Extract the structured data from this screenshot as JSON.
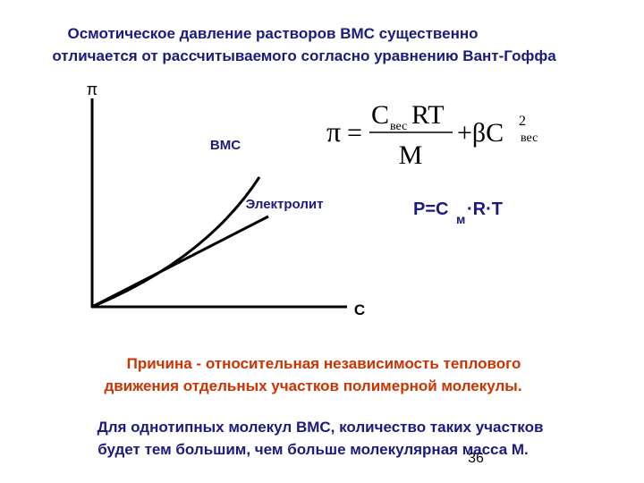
{
  "title": {
    "lines": [
      "Осмотическое давление растворов ВМС существенно",
      "отличается от рассчитываемого согласно уравнению Вант-Гоффа"
    ]
  },
  "graph": {
    "y_axis_label": "π",
    "x_axis_label": "C",
    "curves": [
      "ВМС",
      "Электролит"
    ]
  },
  "formula_1": {
    "lhs": "π",
    "eq": "=",
    "num_c": "C",
    "num_sub": "вес",
    "num_rest": "RT",
    "den": "M",
    "plus": "+βC",
    "sup": "2",
    "sub": "вес"
  },
  "formula_2": {
    "main": "P=C",
    "sub": "м",
    "rest": "·R·T"
  },
  "reason": {
    "lines": [
      "Причина - относительная независимость теплового",
      "движения отдельных участков полимерной молекулы."
    ]
  },
  "note": {
    "lines": [
      "Для однотипных молекул ВМС, количество таких участков",
      "будет тем большим, чем больше молекулярная масса М."
    ]
  },
  "page_number": "36"
}
